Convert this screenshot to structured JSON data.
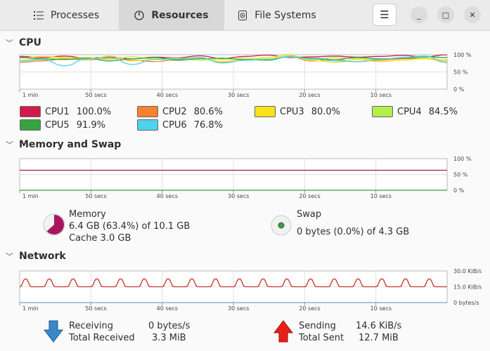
{
  "tabs": [
    {
      "label": "Processes",
      "icon": "list-icon"
    },
    {
      "label": "Resources",
      "icon": "gauge-icon",
      "active": true
    },
    {
      "label": "File Systems",
      "icon": "disk-icon"
    }
  ],
  "window": {
    "menu_icon": "hamburger-icon",
    "minimize": "_",
    "maximize": "□",
    "close": "✕"
  },
  "time_labels": [
    "1 min",
    "50 secs",
    "40 secs",
    "30 secs",
    "20 secs",
    "10 secs"
  ],
  "cpu": {
    "title": "CPU",
    "y_ticks": [
      "100 %",
      "50 %",
      "0 %"
    ],
    "cores": [
      {
        "label": "CPU1",
        "value": "100.0%",
        "color": "#d31b4b",
        "series": [
          95,
          92,
          96,
          90,
          94,
          88,
          93,
          91,
          97,
          89,
          95,
          99,
          92,
          94,
          96,
          93,
          95,
          98,
          94,
          100
        ]
      },
      {
        "label": "CPU2",
        "value": "80.6%",
        "color": "#f8822f",
        "series": [
          78,
          82,
          88,
          85,
          90,
          84,
          80,
          86,
          92,
          78,
          84,
          88,
          94,
          82,
          86,
          80,
          84,
          88,
          90,
          81
        ]
      },
      {
        "label": "CPU3",
        "value": "80.0%",
        "color": "#fbe21d",
        "series": [
          90,
          95,
          92,
          86,
          96,
          82,
          88,
          84,
          90,
          80,
          86,
          92,
          98,
          84,
          78,
          86,
          80,
          84,
          88,
          80
        ]
      },
      {
        "label": "CPU4",
        "value": "84.5%",
        "color": "#b4ee4a",
        "series": [
          84,
          88,
          90,
          92,
          86,
          94,
          88,
          90,
          84,
          86,
          90,
          88,
          96,
          86,
          92,
          88,
          86,
          92,
          90,
          85
        ]
      },
      {
        "label": "CPU5",
        "value": "91.9%",
        "color": "#36a240",
        "series": [
          92,
          88,
          86,
          90,
          82,
          88,
          92,
          84,
          88,
          90,
          86,
          84,
          94,
          90,
          86,
          92,
          88,
          90,
          94,
          92
        ]
      },
      {
        "label": "CPU6",
        "value": "76.8%",
        "color": "#4fd2ec",
        "series": [
          82,
          86,
          68,
          88,
          92,
          72,
          86,
          88,
          92,
          76,
          84,
          86,
          94,
          88,
          82,
          80,
          86,
          92,
          96,
          77
        ]
      }
    ]
  },
  "memory": {
    "title": "Memory and Swap",
    "y_ticks": [
      "100 %",
      "50 %",
      "0 %"
    ],
    "memory_percent": 63.4,
    "swap_percent": 0.0,
    "memory_label": "Memory",
    "memory_line": "6.4 GB (63.4%) of 10.1 GB",
    "cache_line": "Cache 3.0 GB",
    "memory_color": "#a8175e",
    "swap_label": "Swap",
    "swap_line": "0 bytes (0.0%) of 4.3 GB",
    "swap_color": "#3d9c3d"
  },
  "network": {
    "title": "Network",
    "y_ticks": [
      "30.0 KiB/s",
      "15.0 KiB/s",
      "0 bytes/s"
    ],
    "y_max_kib": 30,
    "sending_series_note_color": "#c83a2a",
    "receiving_color": "#7ba3c0",
    "receiving_label": "Receiving",
    "receiving_value": "0 bytes/s",
    "total_received_label": "Total Received",
    "total_received_value": "3.3 MiB",
    "sending_label": "Sending",
    "sending_value": "14.6 KiB/s",
    "total_sent_label": "Total Sent",
    "total_sent_value": "12.7 MiB"
  }
}
